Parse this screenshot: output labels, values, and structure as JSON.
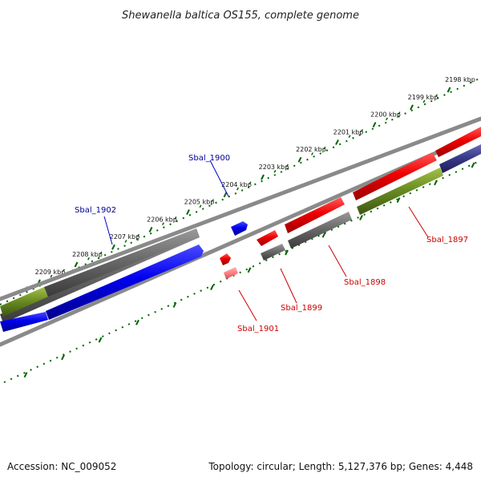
{
  "title": "Shewanella baltica OS155, complete genome",
  "footer": {
    "accession": "Accession: NC_009052",
    "summary": "Topology: circular; Length: 5,127,376 bp; Genes: 4,448"
  },
  "scale": {
    "unit": "kbp",
    "ticks": [
      "2198 kbp",
      "2199 kbp",
      "2200 kbp",
      "2201 kbp",
      "2202 kbp",
      "2203 kbp",
      "2204 kbp",
      "2205 kbp",
      "2206 kbp",
      "2207 kbp",
      "2208 kbp",
      "2209 kbp"
    ]
  },
  "genes": [
    {
      "name": "Sbal_1897",
      "color": "#cc0000"
    },
    {
      "name": "Sbal_1898",
      "color": "#cc0000"
    },
    {
      "name": "Sbal_1899",
      "color": "#cc0000"
    },
    {
      "name": "Sbal_1900",
      "color": "#000099"
    },
    {
      "name": "Sbal_1901",
      "color": "#cc0000"
    },
    {
      "name": "Sbal_1902",
      "color": "#000099"
    }
  ],
  "colors": {
    "forward_strand": "#ff0000",
    "forward_strand_light": "#ff8080",
    "reverse_strand": "#0000ee",
    "grey_feature": "#555555",
    "olive_feature": "#6b8e23",
    "navy_feature": "#2d2d80",
    "backbone": "#8a8a8a",
    "tick_green": "#006400"
  }
}
